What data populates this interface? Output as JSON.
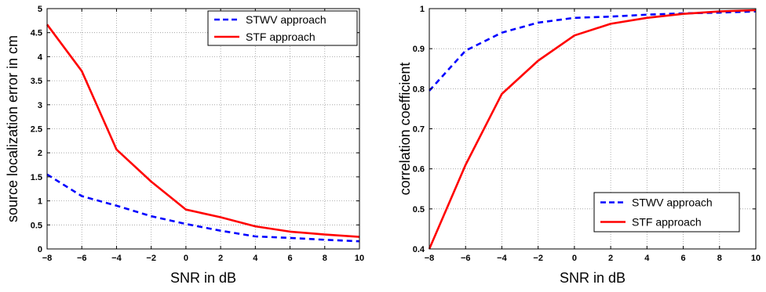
{
  "chart_data": [
    {
      "type": "line",
      "xlabel": "SNR in dB",
      "ylabel": "source localization error in cm",
      "xlim": [
        -8,
        10
      ],
      "ylim": [
        0,
        5
      ],
      "xticks": [
        "−8",
        "−6",
        "−4",
        "−2",
        "0",
        "2",
        "4",
        "6",
        "8",
        "10"
      ],
      "yticks": [
        "0",
        "0.5",
        "1",
        "1.5",
        "2",
        "2.5",
        "3",
        "3.5",
        "4",
        "4.5",
        "5"
      ],
      "grid": true,
      "legend_position": "top-right",
      "series": [
        {
          "name": "STWV approach",
          "color": "#0000ff",
          "style": "dashed",
          "x": [
            -8,
            -6,
            -4,
            -2,
            0,
            2,
            4,
            6,
            8,
            10
          ],
          "y": [
            1.55,
            1.1,
            0.9,
            0.68,
            0.52,
            0.38,
            0.26,
            0.23,
            0.19,
            0.16
          ]
        },
        {
          "name": "STF approach",
          "color": "#ff0000",
          "style": "solid",
          "x": [
            -8,
            -6,
            -4,
            -2,
            0,
            2,
            4,
            6,
            8,
            10
          ],
          "y": [
            4.67,
            3.7,
            2.07,
            1.4,
            0.82,
            0.66,
            0.47,
            0.36,
            0.3,
            0.25
          ]
        }
      ]
    },
    {
      "type": "line",
      "xlabel": "SNR in dB",
      "ylabel": "correlation coefficient",
      "xlim": [
        -8,
        10
      ],
      "ylim": [
        0.4,
        1
      ],
      "xticks": [
        "−8",
        "−6",
        "−4",
        "−2",
        "0",
        "2",
        "4",
        "6",
        "8",
        "10"
      ],
      "yticks": [
        "0.4",
        "0.5",
        "0.6",
        "0.7",
        "0.8",
        "0.9",
        "1"
      ],
      "grid": true,
      "legend_position": "bottom-right",
      "series": [
        {
          "name": "STWV approach",
          "color": "#0000ff",
          "style": "dashed",
          "x": [
            -8,
            -6,
            -4,
            -2,
            0,
            2,
            4,
            6,
            8,
            10
          ],
          "y": [
            0.795,
            0.895,
            0.94,
            0.965,
            0.977,
            0.98,
            0.985,
            0.988,
            0.99,
            0.993
          ]
        },
        {
          "name": "STF approach",
          "color": "#ff0000",
          "style": "solid",
          "x": [
            -8,
            -6,
            -4,
            -2,
            0,
            2,
            4,
            6,
            8,
            10
          ],
          "y": [
            0.4,
            0.61,
            0.787,
            0.87,
            0.933,
            0.962,
            0.977,
            0.987,
            0.993,
            0.996
          ]
        }
      ]
    }
  ]
}
